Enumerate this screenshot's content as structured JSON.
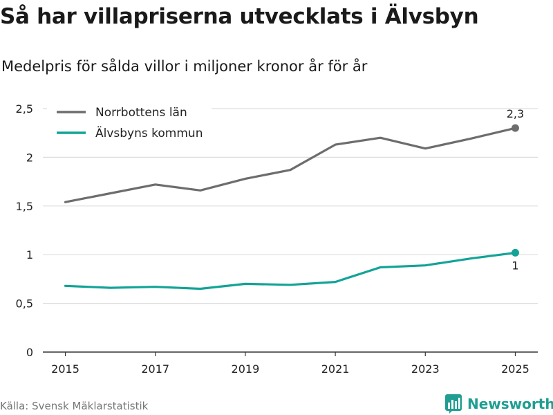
{
  "header": {
    "title": "Så har villapriserna utvecklats i Älvsbyn",
    "subtitle": "Medelpris för sålda villor i miljoner kronor år för år"
  },
  "footer": {
    "source": "Källa: Svensk Mäklarstatistik",
    "brand": "Newsworthy",
    "brand_icon": "newsworthy-logo-icon"
  },
  "colors": {
    "norrbotten": "#6d6d6d",
    "alvsbyn": "#13a397",
    "grid": "#dddddd",
    "axis": "#333333"
  },
  "chart_data": {
    "type": "line",
    "title": "Så har villapriserna utvecklats i Älvsbyn",
    "subtitle": "Medelpris för sålda villor i miljoner kronor år för år",
    "xlabel": "",
    "ylabel": "",
    "x": [
      2015,
      2016,
      2017,
      2018,
      2019,
      2020,
      2021,
      2022,
      2023,
      2024,
      2025
    ],
    "xticks": [
      2015,
      2017,
      2019,
      2021,
      2023,
      2025
    ],
    "xlim": [
      2014.5,
      2025.5
    ],
    "ylim": [
      0,
      2.5
    ],
    "yticks": [
      0,
      0.5,
      1,
      1.5,
      2,
      2.5
    ],
    "ytick_labels": [
      "0",
      "0,5",
      "1",
      "1,5",
      "2",
      "2,5"
    ],
    "grid": true,
    "legend_position": "top-left",
    "series": [
      {
        "name": "Norrbottens län",
        "color": "#6d6d6d",
        "values": [
          1.54,
          1.63,
          1.72,
          1.66,
          1.78,
          1.87,
          2.13,
          2.2,
          2.09,
          2.19,
          2.3
        ],
        "end_label": "2,3",
        "end_label_position": "above"
      },
      {
        "name": "Älvsbyns kommun",
        "color": "#13a397",
        "values": [
          0.68,
          0.66,
          0.67,
          0.65,
          0.7,
          0.69,
          0.72,
          0.87,
          0.89,
          0.96,
          1.02
        ],
        "end_label": "1",
        "end_label_position": "below"
      }
    ]
  }
}
